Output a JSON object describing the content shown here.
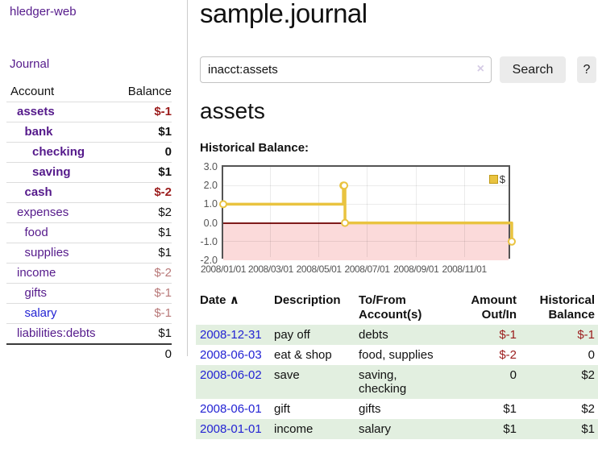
{
  "palette": {
    "accent_purple": "#551a8b",
    "link_blue": "#2323d3",
    "negative_red": "#9b1c1c",
    "muted_negative": "#b87878",
    "row_green": "#e2efe0",
    "chart_gold": "#e9c340",
    "chart_pink": "#fbdada",
    "zero_red": "#7f1a1a",
    "border_gray": "#cccccc"
  },
  "sidebar": {
    "app_title": "hledger-web",
    "journal_label": "Journal",
    "accounts": {
      "header_account": "Account",
      "header_balance": "Balance",
      "rows": [
        {
          "account": "assets",
          "indent": 1,
          "bold": true,
          "link_color": "purple",
          "balance": "$-1",
          "balance_class": "neg"
        },
        {
          "account": "bank",
          "indent": 2,
          "bold": true,
          "link_color": "purple",
          "balance": "$1",
          "balance_class": "pos"
        },
        {
          "account": "checking",
          "indent": 3,
          "bold": true,
          "link_color": "purple",
          "balance": "0",
          "balance_class": "pos"
        },
        {
          "account": "saving",
          "indent": 3,
          "bold": true,
          "link_color": "purple",
          "balance": "$1",
          "balance_class": "pos"
        },
        {
          "account": "cash",
          "indent": 2,
          "bold": true,
          "link_color": "purple",
          "balance": "$-2",
          "balance_class": "neg"
        },
        {
          "account": "expenses",
          "indent": 1,
          "bold": false,
          "link_color": "purple",
          "balance": "$2",
          "balance_class": "pos"
        },
        {
          "account": "food",
          "indent": 2,
          "bold": false,
          "link_color": "purple",
          "balance": "$1",
          "balance_class": "pos"
        },
        {
          "account": "supplies",
          "indent": 2,
          "bold": false,
          "link_color": "purple",
          "balance": "$1",
          "balance_class": "pos"
        },
        {
          "account": "income",
          "indent": 1,
          "bold": false,
          "link_color": "purple",
          "balance": "$-2",
          "balance_class": "neg-muted"
        },
        {
          "account": "gifts",
          "indent": 2,
          "bold": false,
          "link_color": "purple",
          "balance": "$-1",
          "balance_class": "neg-muted"
        },
        {
          "account": "salary",
          "indent": 2,
          "bold": false,
          "link_color": "blue",
          "balance": "$-1",
          "balance_class": "neg-muted"
        },
        {
          "account": "liabilities:debts",
          "indent": 1,
          "bold": false,
          "link_color": "purple",
          "balance": "$1",
          "balance_class": "pos"
        }
      ],
      "total": "0"
    }
  },
  "main": {
    "page_title": "sample.journal",
    "search": {
      "value": "inacct:assets",
      "clear_icon": "×",
      "button_label": "Search",
      "help_label": "?"
    },
    "account_heading": "assets",
    "chart_label": "Historical Balance:"
  },
  "chart_data": {
    "type": "line",
    "step": true,
    "title": "Historical Balance:",
    "series": [
      {
        "name": "$",
        "color": "#e9c340",
        "points": [
          {
            "x": "2008-01-01",
            "y": 1
          },
          {
            "x": "2008-06-01",
            "y": 2
          },
          {
            "x": "2008-06-02",
            "y": 2
          },
          {
            "x": "2008-06-03",
            "y": 0
          },
          {
            "x": "2008-12-31",
            "y": -1
          }
        ]
      }
    ],
    "x_domain": [
      "2008-01-01",
      "2008-12-31"
    ],
    "ylim": [
      -2,
      3
    ],
    "yticks": [
      {
        "value": 3,
        "label": "3.0"
      },
      {
        "value": 2,
        "label": "2.0"
      },
      {
        "value": 1,
        "label": "1.0"
      },
      {
        "value": 0,
        "label": "0.0"
      },
      {
        "value": -1,
        "label": "-1.0"
      },
      {
        "value": -2,
        "label": "-2.0"
      }
    ],
    "xticks": [
      {
        "value": "2008-01-01",
        "label": "2008/01/01"
      },
      {
        "value": "2008-03-01",
        "label": "2008/03/01"
      },
      {
        "value": "2008-05-01",
        "label": "2008/05/01"
      },
      {
        "value": "2008-07-01",
        "label": "2008/07/01"
      },
      {
        "value": "2008-09-01",
        "label": "2008/09/01"
      },
      {
        "value": "2008-11-01",
        "label": "2008/11/01"
      }
    ],
    "grid": true,
    "negative_region": true,
    "legend": {
      "position": "top-right",
      "label": "$"
    }
  },
  "register": {
    "headers": {
      "date": "Date",
      "sort_icon": "∧",
      "description": "Description",
      "account": "To/From Account(s)",
      "amount": "Amount Out/In",
      "balance": "Historical Balance"
    },
    "rows": [
      {
        "date": "2008-12-31",
        "description": "pay off",
        "accounts": "debts",
        "amount": "$-1",
        "amount_class": "neg",
        "balance": "$-1",
        "balance_class": "neg"
      },
      {
        "date": "2008-06-03",
        "description": "eat & shop",
        "accounts": "food, supplies",
        "amount": "$-2",
        "amount_class": "neg",
        "balance": "0",
        "balance_class": "pos"
      },
      {
        "date": "2008-06-02",
        "description": "save",
        "accounts": "saving, checking",
        "amount": "0",
        "amount_class": "pos",
        "balance": "$2",
        "balance_class": "pos"
      },
      {
        "date": "2008-06-01",
        "description": "gift",
        "accounts": "gifts",
        "amount": "$1",
        "amount_class": "pos",
        "balance": "$2",
        "balance_class": "pos"
      },
      {
        "date": "2008-01-01",
        "description": "income",
        "accounts": "salary",
        "amount": "$1",
        "amount_class": "pos",
        "balance": "$1",
        "balance_class": "pos"
      }
    ]
  }
}
